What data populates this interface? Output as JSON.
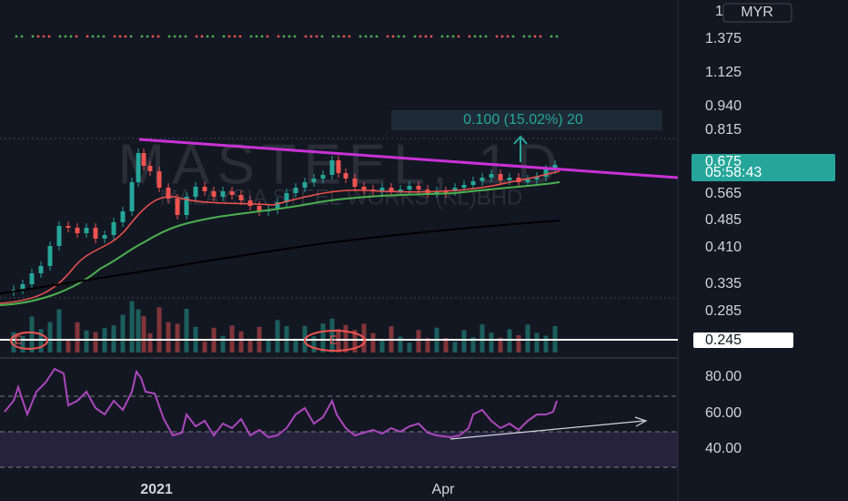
{
  "symbol_watermark": "MASTEEL, 1D",
  "company_watermark": "MALAYSIA STEEL WORKS (KL)BHD",
  "scale_top": "1",
  "currency": "MYR",
  "price_axis": [
    "1.375",
    "1.125",
    "0.940",
    "0.815",
    "0.565",
    "0.485",
    "0.410",
    "0.335",
    "0.285"
  ],
  "last_price": "0.675",
  "countdown": "05:58:43",
  "line_price": "0.245",
  "measure": "0.100 (15.02%) 20",
  "rsi_axis": [
    "80.00",
    "60.00",
    "40.00"
  ],
  "time_axis": [
    "2021",
    "Apr"
  ],
  "markers": [
    "E",
    "E"
  ]
}
